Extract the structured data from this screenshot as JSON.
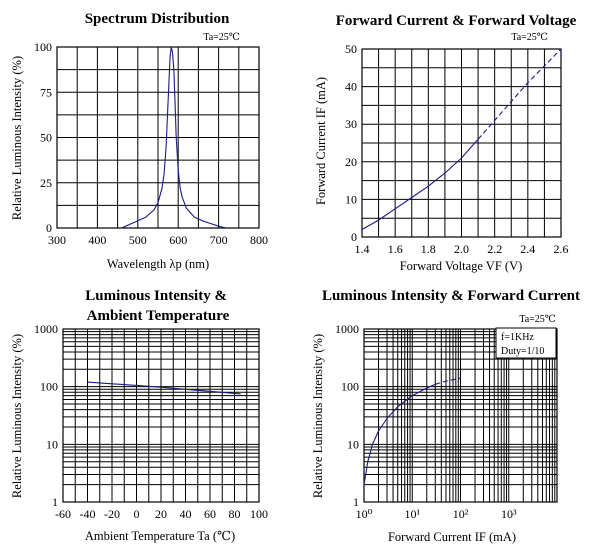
{
  "chart_data": [
    {
      "type": "line",
      "title": "Spectrum Distribution",
      "annotation": "Ta=25℃",
      "xlabel": "Wavelength  λp (nm)",
      "ylabel": "Relative Luminous Intensity (%)",
      "xlim": [
        300,
        800
      ],
      "ylim": [
        0,
        100
      ],
      "xticks": [
        "300",
        "400",
        "500",
        "600",
        "700",
        "800"
      ],
      "yticks": [
        "0",
        "25",
        "50",
        "75",
        "100"
      ],
      "series": [
        {
          "style": "solid",
          "x": [
            460,
            480,
            500,
            520,
            540,
            550,
            560,
            565,
            570,
            575,
            580,
            583,
            586,
            589,
            592,
            595,
            600,
            605,
            610,
            620,
            640,
            660,
            680,
            700,
            710,
            720
          ],
          "y": [
            0,
            2,
            4,
            6,
            10,
            14,
            22,
            30,
            45,
            70,
            95,
            100,
            97,
            88,
            70,
            50,
            32,
            22,
            17,
            11,
            6,
            4,
            2.5,
            1,
            0.5,
            0
          ]
        }
      ]
    },
    {
      "type": "line",
      "title": "Forward Current & Forward Voltage",
      "annotation": "Ta=25℃",
      "xlabel": "Forward Voltage  VF (V)",
      "ylabel": "Forward Current IF (mA)",
      "xlim": [
        1.4,
        2.6
      ],
      "ylim": [
        0,
        50
      ],
      "xticks": [
        "1.4",
        "1.6",
        "1.8",
        "2.0",
        "2.2",
        "2.4",
        "2.6"
      ],
      "yticks": [
        "0",
        "10",
        "20",
        "30",
        "40",
        "50"
      ],
      "series": [
        {
          "style": "solid",
          "x": [
            1.4,
            1.5,
            1.6,
            1.7,
            1.8,
            1.9,
            2.0,
            2.1
          ],
          "y": [
            2,
            4.5,
            7.5,
            10.5,
            13.5,
            17,
            21,
            26
          ]
        },
        {
          "style": "dashed",
          "x": [
            2.1,
            2.2,
            2.3,
            2.4,
            2.5,
            2.6
          ],
          "y": [
            26,
            31,
            36,
            41,
            45.5,
            50
          ]
        }
      ]
    },
    {
      "type": "line",
      "title": "Luminous Intensity &\nAmbient Temperature",
      "xlabel": "Ambient Temperature Ta (℃)",
      "ylabel": "Relative Luminous Intensity (%)",
      "xlim": [
        -60,
        100
      ],
      "ylim": [
        1,
        1000
      ],
      "yscale": "log",
      "xticks": [
        "-60",
        "-40",
        "-20",
        "0",
        "20",
        "40",
        "60",
        "80",
        "100"
      ],
      "yticks": [
        "1",
        "10",
        "100",
        "1000"
      ],
      "series": [
        {
          "style": "solid",
          "x": [
            -40,
            -20,
            0,
            20,
            40,
            60,
            85
          ],
          "y": [
            120,
            112,
            105,
            98,
            90,
            83,
            75
          ]
        }
      ]
    },
    {
      "type": "line",
      "title": "Luminous Intensity & Forward Current",
      "annotation": "Ta=25℃",
      "annotation2": "f=1KHz",
      "annotation3": "Duty=1/10",
      "xlabel": "Forward Current IF (mA)",
      "ylabel": "Relative Luminous Intensity (%)",
      "xlim": [
        1,
        10000
      ],
      "ylim": [
        1,
        1000
      ],
      "xscale": "log",
      "yscale": "log",
      "xticks": [
        "10⁰",
        "10¹",
        "10²",
        "10³"
      ],
      "yticks": [
        "1",
        "10",
        "100",
        "1000"
      ],
      "series": [
        {
          "style": "solid",
          "x": [
            1,
            1.2,
            1.5,
            2,
            3,
            5,
            10,
            20,
            30
          ],
          "y": [
            2,
            5,
            10,
            17,
            28,
            45,
            70,
            95,
            110
          ]
        },
        {
          "style": "dashed",
          "x": [
            30,
            50,
            100
          ],
          "y": [
            110,
            125,
            140
          ]
        }
      ]
    }
  ]
}
